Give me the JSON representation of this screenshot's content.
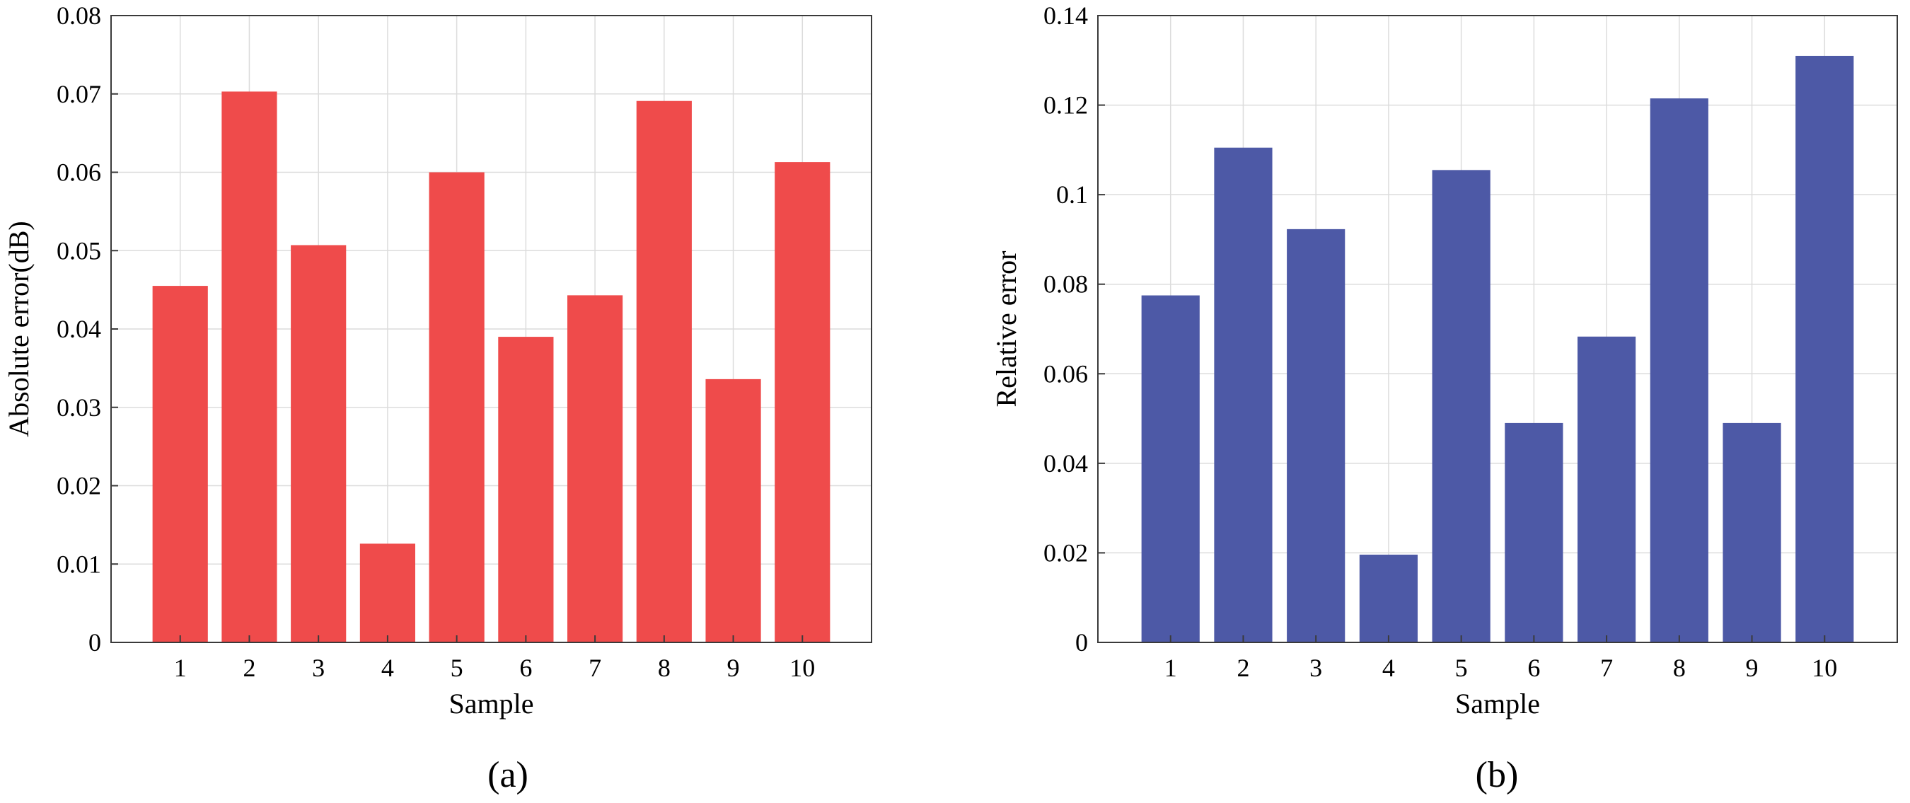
{
  "chart_data": [
    {
      "type": "bar",
      "panel_label": "(a)",
      "categories": [
        "1",
        "2",
        "3",
        "4",
        "5",
        "6",
        "7",
        "8",
        "9",
        "10"
      ],
      "values": [
        0.0455,
        0.0703,
        0.0507,
        0.0126,
        0.06,
        0.039,
        0.0443,
        0.0691,
        0.0336,
        0.0613
      ],
      "xlabel": "Sample",
      "ylabel": "Absolute error(dB)",
      "ylim": [
        0,
        0.08
      ],
      "yticks": [
        "0",
        "0.01",
        "0.02",
        "0.03",
        "0.04",
        "0.05",
        "0.06",
        "0.07",
        "0.08"
      ],
      "grid": true,
      "color": "#ef4b4b"
    },
    {
      "type": "bar",
      "panel_label": "(b)",
      "categories": [
        "1",
        "2",
        "3",
        "4",
        "5",
        "6",
        "7",
        "8",
        "9",
        "10"
      ],
      "values": [
        0.0775,
        0.1105,
        0.0923,
        0.0196,
        0.1055,
        0.049,
        0.0683,
        0.1215,
        0.049,
        0.131
      ],
      "xlabel": "Sample",
      "ylabel": "Relative error",
      "ylim": [
        0,
        0.14
      ],
      "yticks": [
        "0",
        "0.02",
        "0.04",
        "0.06",
        "0.08",
        "0.1",
        "0.12",
        "0.14"
      ],
      "grid": true,
      "color": "#4d59a6"
    }
  ]
}
